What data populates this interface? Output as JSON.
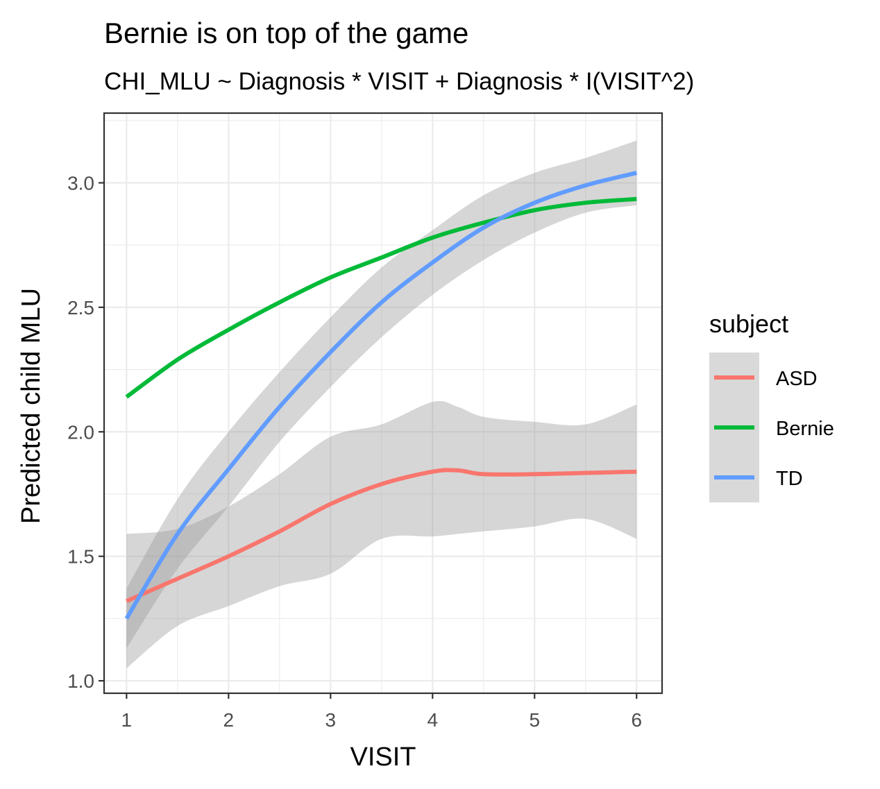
{
  "chart_data": {
    "type": "line",
    "title": "Bernie is on top of the game",
    "subtitle": "CHI_MLU ~ Diagnosis * VISIT + Diagnosis * I(VISIT^2)",
    "xlabel": "VISIT",
    "ylabel": "Predicted child MLU",
    "xlim": [
      0.78,
      6.25
    ],
    "ylim": [
      0.95,
      3.28
    ],
    "x_ticks": [
      1,
      2,
      3,
      4,
      5,
      6
    ],
    "x_tick_labels": [
      "1",
      "2",
      "3",
      "4",
      "5",
      "6"
    ],
    "y_ticks": [
      1.0,
      1.5,
      2.0,
      2.5,
      3.0
    ],
    "y_tick_labels": [
      "1.0",
      "1.5",
      "2.0",
      "2.5",
      "3.0"
    ],
    "grid": true,
    "legend": {
      "title": "subject",
      "position": "right"
    },
    "series": [
      {
        "name": "ASD",
        "color": "#F8766D",
        "x": [
          1.0,
          1.5,
          2.0,
          2.5,
          3.0,
          3.5,
          4.0,
          4.25,
          4.5,
          5.0,
          5.5,
          6.0
        ],
        "values": [
          1.32,
          1.41,
          1.5,
          1.6,
          1.71,
          1.79,
          1.84,
          1.845,
          1.83,
          1.83,
          1.835,
          1.84
        ],
        "ci_lower": [
          1.05,
          1.22,
          1.3,
          1.38,
          1.43,
          1.57,
          1.58,
          1.59,
          1.6,
          1.62,
          1.65,
          1.57
        ],
        "ci_upper": [
          1.59,
          1.61,
          1.7,
          1.83,
          1.98,
          2.03,
          2.12,
          2.1,
          2.06,
          2.04,
          2.03,
          2.11
        ]
      },
      {
        "name": "Bernie",
        "color": "#00BA38",
        "x": [
          1.0,
          1.5,
          2.0,
          2.5,
          3.0,
          3.5,
          4.0,
          4.5,
          5.0,
          5.5,
          6.0
        ],
        "values": [
          2.14,
          2.29,
          2.41,
          2.52,
          2.62,
          2.7,
          2.78,
          2.84,
          2.89,
          2.92,
          2.935
        ]
      },
      {
        "name": "TD",
        "color": "#619CFF",
        "x": [
          1.0,
          1.5,
          2.0,
          2.5,
          3.0,
          3.5,
          4.0,
          4.5,
          5.0,
          5.5,
          6.0
        ],
        "values": [
          1.25,
          1.59,
          1.85,
          2.1,
          2.32,
          2.52,
          2.68,
          2.82,
          2.92,
          2.99,
          3.04
        ],
        "ci_lower": [
          1.13,
          1.45,
          1.7,
          1.96,
          2.18,
          2.38,
          2.55,
          2.69,
          2.8,
          2.88,
          2.91
        ],
        "ci_upper": [
          1.37,
          1.73,
          2.0,
          2.24,
          2.46,
          2.66,
          2.81,
          2.95,
          3.04,
          3.1,
          3.17
        ]
      }
    ]
  }
}
